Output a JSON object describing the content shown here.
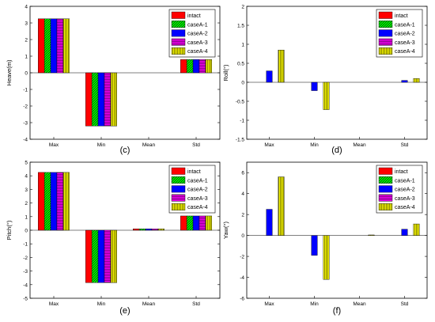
{
  "series_styles": [
    {
      "name": "intact",
      "color": "#ff0000",
      "hatch": "solid"
    },
    {
      "name": "caseA-1",
      "color": "#00ff00",
      "hatch": "diag"
    },
    {
      "name": "caseA-2",
      "color": "#0000ff",
      "hatch": "solid"
    },
    {
      "name": "caseA-3",
      "color": "#ff00ff",
      "hatch": "horiz"
    },
    {
      "name": "caseA-4",
      "color": "#ffff00",
      "hatch": "vert"
    }
  ],
  "chart_data": [
    {
      "type": "bar",
      "panel_label": "(c)",
      "ylabel": "Heave(m)",
      "categories": [
        "Max",
        "Min",
        "Mean",
        "Std"
      ],
      "ylim": [
        -4,
        4
      ],
      "yticks": [
        -4,
        -3,
        -2,
        -1,
        0,
        1,
        2,
        3,
        4
      ],
      "legend": "top-right",
      "series": [
        {
          "name": "intact",
          "values": [
            3.25,
            -3.2,
            0,
            0.8
          ]
        },
        {
          "name": "caseA-1",
          "values": [
            3.25,
            -3.2,
            0,
            0.8
          ]
        },
        {
          "name": "caseA-2",
          "values": [
            3.25,
            -3.2,
            0,
            0.8
          ]
        },
        {
          "name": "caseA-3",
          "values": [
            3.25,
            -3.2,
            0,
            0.8
          ]
        },
        {
          "name": "caseA-4",
          "values": [
            3.25,
            -3.2,
            0,
            0.8
          ]
        }
      ]
    },
    {
      "type": "bar",
      "panel_label": "(d)",
      "ylabel": "Roll(°)",
      "categories": [
        "Max",
        "Min",
        "Mean",
        "Std"
      ],
      "ylim": [
        -1.5,
        2.0
      ],
      "yticks": [
        -1.5,
        -1.0,
        -0.5,
        0.0,
        0.5,
        1.0,
        1.5,
        2.0
      ],
      "legend": "top-right",
      "series": [
        {
          "name": "intact",
          "values": [
            0,
            0,
            0,
            0
          ]
        },
        {
          "name": "caseA-1",
          "values": [
            0,
            0,
            0,
            0
          ]
        },
        {
          "name": "caseA-2",
          "values": [
            0.3,
            -0.22,
            0,
            0.05
          ]
        },
        {
          "name": "caseA-3",
          "values": [
            0,
            0,
            0,
            0
          ]
        },
        {
          "name": "caseA-4",
          "values": [
            0.85,
            -0.72,
            0,
            0.1
          ]
        }
      ]
    },
    {
      "type": "bar",
      "panel_label": "(e)",
      "ylabel": "Pitch(°)",
      "categories": [
        "Max",
        "Min",
        "Mean",
        "Std"
      ],
      "ylim": [
        -5,
        5
      ],
      "yticks": [
        -5,
        -4,
        -3,
        -2,
        -1,
        0,
        1,
        2,
        3,
        4,
        5
      ],
      "legend": "top-right",
      "series": [
        {
          "name": "intact",
          "values": [
            4.25,
            -3.85,
            0.1,
            1.05
          ]
        },
        {
          "name": "caseA-1",
          "values": [
            4.25,
            -3.85,
            0.1,
            1.05
          ]
        },
        {
          "name": "caseA-2",
          "values": [
            4.25,
            -3.85,
            0.1,
            1.05
          ]
        },
        {
          "name": "caseA-3",
          "values": [
            4.25,
            -3.85,
            0.1,
            1.05
          ]
        },
        {
          "name": "caseA-4",
          "values": [
            4.25,
            -3.85,
            0.1,
            1.05
          ]
        }
      ]
    },
    {
      "type": "bar",
      "panel_label": "(f)",
      "ylabel": "Yaw(°)",
      "categories": [
        "Max",
        "Min",
        "Mean",
        "Std"
      ],
      "ylim": [
        -6,
        7
      ],
      "yticks": [
        -6,
        -4,
        -2,
        0,
        2,
        4,
        6
      ],
      "legend": "top-right",
      "series": [
        {
          "name": "intact",
          "values": [
            0,
            0,
            0,
            0
          ]
        },
        {
          "name": "caseA-1",
          "values": [
            0,
            0,
            0,
            0
          ]
        },
        {
          "name": "caseA-2",
          "values": [
            2.5,
            -1.9,
            0,
            0.6
          ]
        },
        {
          "name": "caseA-3",
          "values": [
            0,
            0,
            0,
            0
          ]
        },
        {
          "name": "caseA-4",
          "values": [
            5.6,
            -4.2,
            0.05,
            1.1
          ]
        }
      ]
    }
  ]
}
